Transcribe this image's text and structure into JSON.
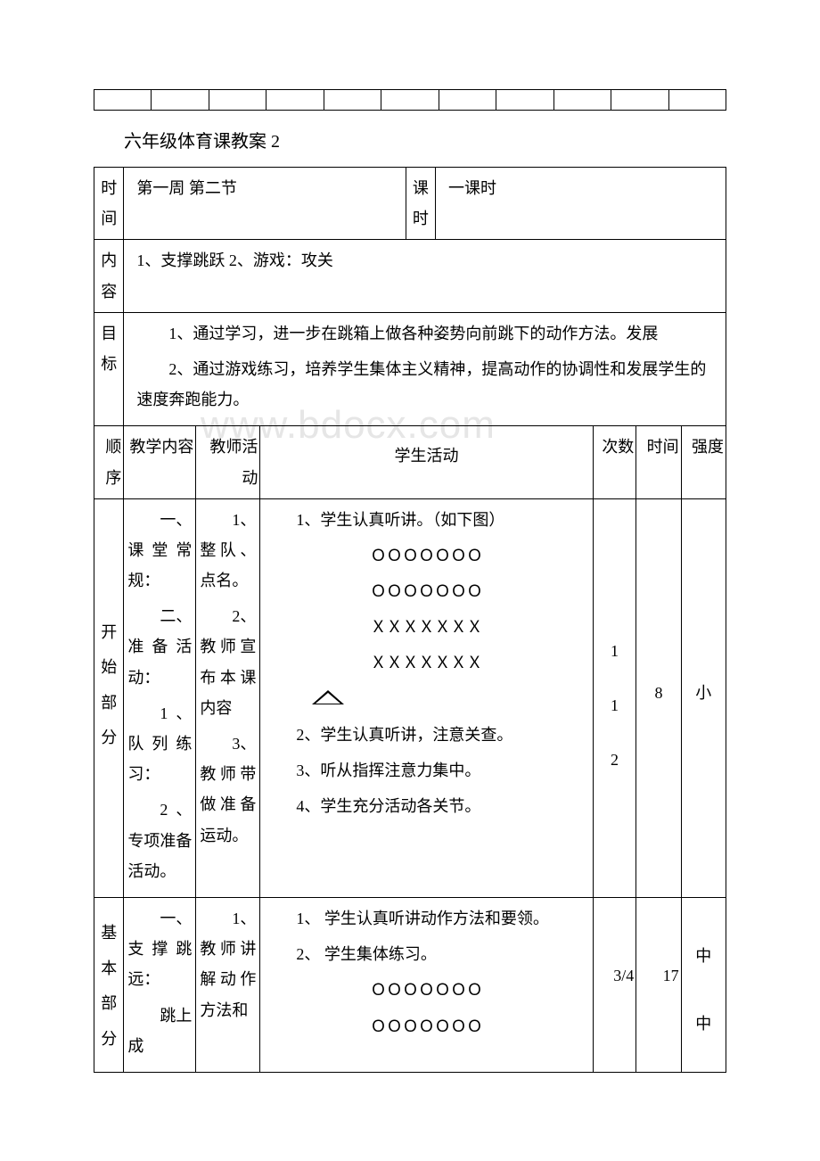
{
  "watermark": "www.bdocx.com",
  "emptyTableCols": 11,
  "title": "六年级体育课教案 2",
  "header": {
    "timeLabel": "时间",
    "timeValue": "第一周 第二节",
    "periodLabel": "课时",
    "periodValue": "一课时",
    "contentLabel": "内容",
    "contentValue": "1、支撑跳跃 2、游戏：攻关",
    "goalLabel": "目标",
    "goal1": "1、通过学习，进一步在跳箱上做各种姿势向前跳下的动作方法。发展",
    "goal2": "2、通过游戏练习，培养学生集体主义精神，提高动作的协调性和发展学生的速度奔跑能力。"
  },
  "columns": {
    "order": "顺序",
    "teachContent": "教学内容",
    "teacherAct": "教师活动",
    "studentAct": "学生活动",
    "times": "次数",
    "duration": "时间",
    "intensity": "强度"
  },
  "rows": [
    {
      "order": "开始部分",
      "teachContent": [
        "一、课堂常规：",
        "二、准备活动：",
        "1、队列练习：",
        "2、专项准备活动。"
      ],
      "teacherAct": [
        "1、整队、点名。",
        "2、教师宣布本课内容",
        "3、教师带做准备运动。"
      ],
      "studentAct": [
        "1、学生认真听讲。（如下图）",
        "ＯＯＯＯＯＯＯ",
        "ＯＯＯＯＯＯＯ",
        "ＸＸＸＸＸＸＸ",
        "ＸＸＸＸＸＸＸ",
        "__TRI__",
        "2、学生认真听讲，注意关查。",
        "3、听从指挥注意力集中。",
        "4、学生充分活动各关节。"
      ],
      "times": [
        "1",
        "1",
        "2"
      ],
      "duration": "8",
      "intensity": "小"
    },
    {
      "order": "基本部分",
      "teachContent": [
        "一、支撑跳远：",
        "跳上成"
      ],
      "teacherAct": [
        "1、教师讲解动作方法和"
      ],
      "studentAct": [
        "1、 学生认真听讲动作方法和要领。",
        "2、 学生集体练习。",
        "ＯＯＯＯＯＯＯ",
        "ＯＯＯＯＯＯＯ"
      ],
      "times": "3/4",
      "duration": "17",
      "intensity": [
        "中",
        "中"
      ]
    }
  ]
}
